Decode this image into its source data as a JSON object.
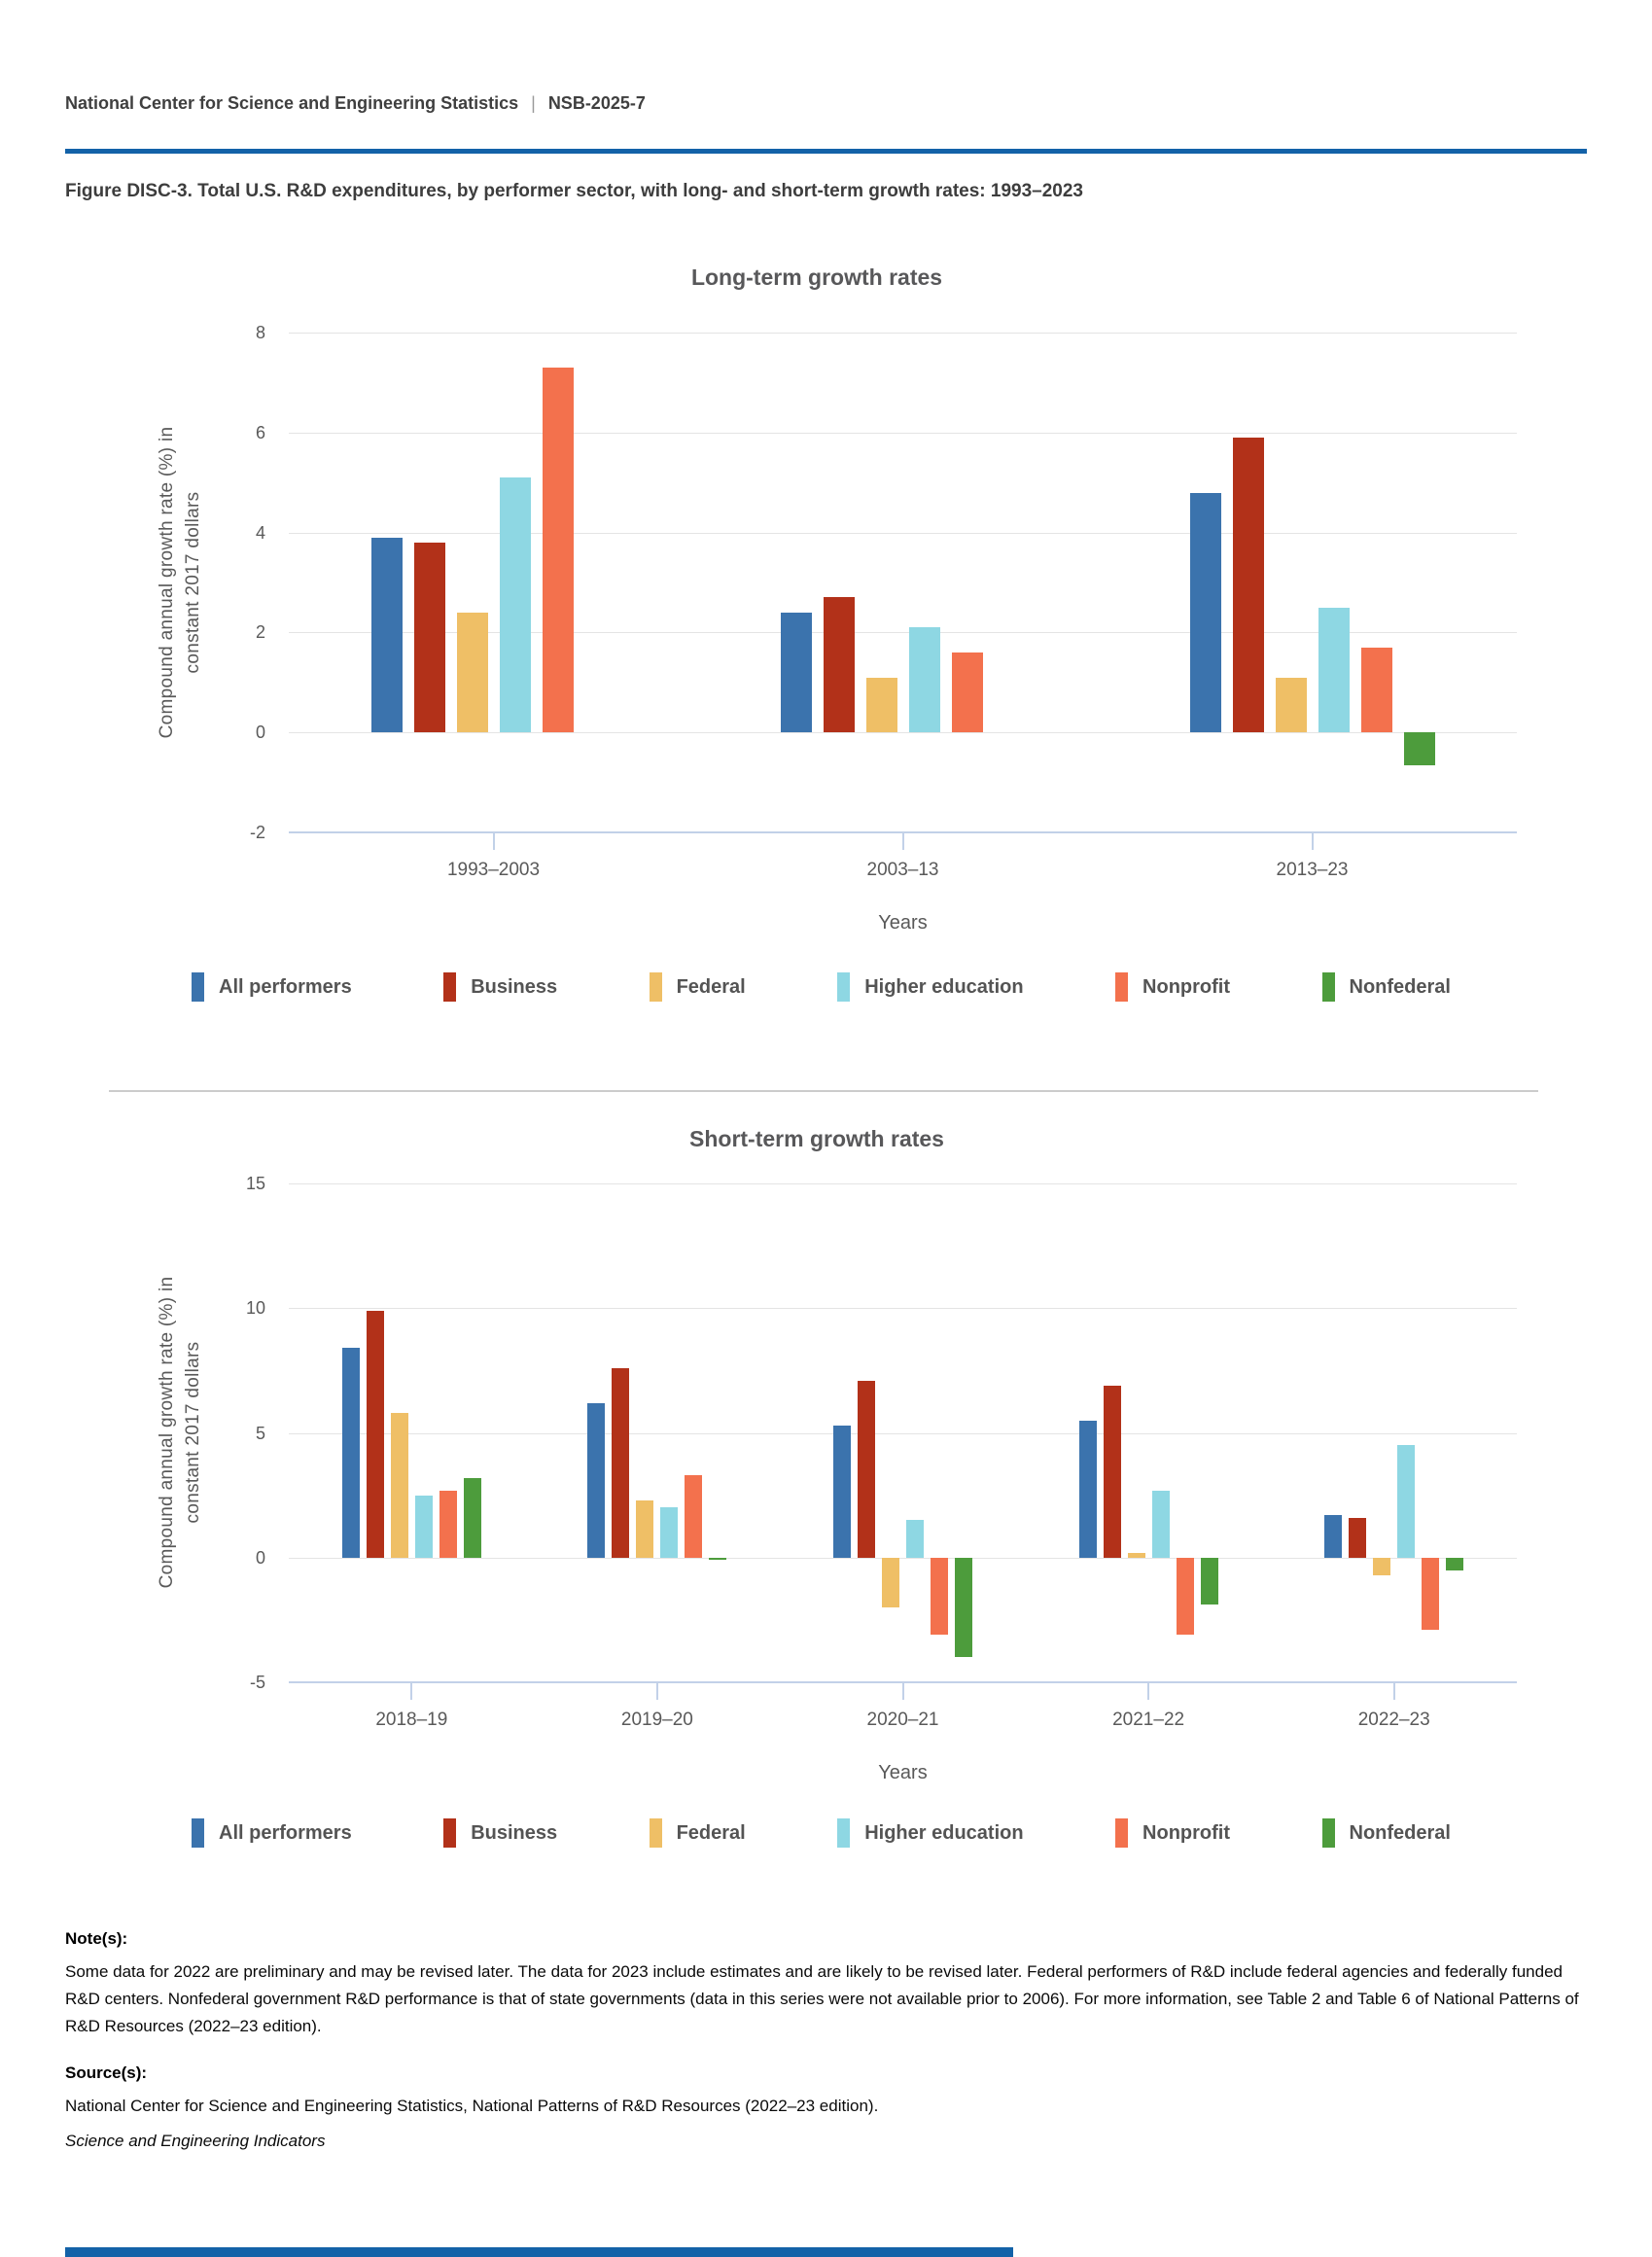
{
  "page": {
    "header": {
      "org": "National Center for Science and Engineering Statistics",
      "separator": "|",
      "report_id": "NSB-2025-7"
    },
    "figure_title": "Figure DISC-3. Total U.S. R&D expenditures, by performer sector, with long- and short-term growth rates: 1993–2023",
    "notes": {
      "heading": "Note(s):",
      "body": "Some data for 2022 are preliminary and may be revised later. The data for 2023 include estimates and are likely to be revised later. Federal performers of R&D include federal agencies and federally funded R&D centers. Nonfederal government R&D performance is that of state governments (data in this series were not available prior to 2006). For more information, see Table 2 and Table 6 of National Patterns of R&D Resources (2022–23 edition)."
    },
    "sources": {
      "heading": "Source(s):",
      "body": "National Center for Science and Engineering Statistics, National Patterns of R&D Resources (2022–23 edition)."
    },
    "footer_italic": "Science and Engineering Indicators"
  },
  "colors": {
    "accent_blue_rule": "#1362a8",
    "gridline": "#e4e4e4",
    "axis_line": "#c2d1e8"
  },
  "chart_data": [
    {
      "type": "bar",
      "title": "Long-term growth rates",
      "ylabel_lines": [
        "Compound annual growth rate (%) in",
        "constant 2017 dollars"
      ],
      "xlabel": "Years",
      "categories": [
        "1993–2003",
        "2003–13",
        "2013–23"
      ],
      "yticks": [
        8,
        6,
        4,
        2,
        0,
        -2
      ],
      "ylim": [
        -2,
        8
      ],
      "grid": true,
      "legend_position": "bottom",
      "series": [
        {
          "name": "All performers",
          "color": "#3b73ad",
          "values": [
            3.9,
            2.4,
            4.8
          ]
        },
        {
          "name": "Business",
          "color": "#b23119",
          "values": [
            3.8,
            2.7,
            5.9
          ]
        },
        {
          "name": "Federal",
          "color": "#efbf66",
          "values": [
            2.4,
            1.1,
            1.1
          ]
        },
        {
          "name": "Higher education",
          "color": "#8ed7e3",
          "values": [
            5.1,
            2.1,
            2.5
          ]
        },
        {
          "name": "Nonprofit",
          "color": "#f3714d",
          "values": [
            7.3,
            1.6,
            1.7
          ]
        },
        {
          "name": "Nonfederal",
          "color": "#4d9c3c",
          "values": [
            null,
            null,
            -0.65
          ]
        }
      ]
    },
    {
      "type": "bar",
      "title": "Short-term growth rates",
      "ylabel_lines": [
        "Compound annual growth rate (%) in",
        "constant 2017 dollars"
      ],
      "xlabel": "Years",
      "categories": [
        "2018–19",
        "2019–20",
        "2020–21",
        "2021–22",
        "2022–23"
      ],
      "yticks": [
        15,
        10,
        5,
        0,
        -5
      ],
      "ylim": [
        -5,
        15
      ],
      "grid": true,
      "legend_position": "bottom",
      "series": [
        {
          "name": "All performers",
          "color": "#3b73ad",
          "values": [
            8.4,
            6.2,
            5.3,
            5.5,
            1.7
          ]
        },
        {
          "name": "Business",
          "color": "#b23119",
          "values": [
            9.9,
            7.6,
            7.1,
            6.9,
            1.6
          ]
        },
        {
          "name": "Federal",
          "color": "#efbf66",
          "values": [
            5.8,
            2.3,
            -2.0,
            0.2,
            -0.7
          ]
        },
        {
          "name": "Higher education",
          "color": "#8ed7e3",
          "values": [
            2.5,
            2.0,
            1.5,
            2.7,
            4.5
          ]
        },
        {
          "name": "Nonprofit",
          "color": "#f3714d",
          "values": [
            2.7,
            3.3,
            -3.1,
            -3.1,
            -2.9
          ]
        },
        {
          "name": "Nonfederal",
          "color": "#4d9c3c",
          "values": [
            3.2,
            -0.1,
            -4.0,
            -1.9,
            -0.5
          ]
        }
      ]
    }
  ]
}
